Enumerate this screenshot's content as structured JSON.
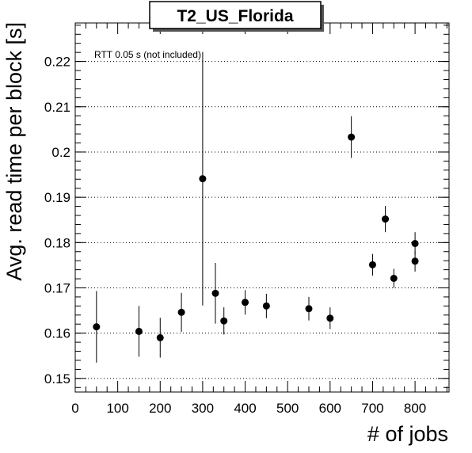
{
  "chart_data": {
    "type": "scatter",
    "title": "T2_US_Florida",
    "xlabel": "# of jobs",
    "ylabel": "Avg. read time per block [s]",
    "annotation": "RTT 0.05 s (not included)",
    "xlim": [
      0,
      880
    ],
    "ylim": [
      0.147,
      0.2285
    ],
    "x_ticks": [
      0,
      100,
      200,
      300,
      400,
      500,
      600,
      700,
      800
    ],
    "y_ticks": [
      0.15,
      0.16,
      0.17,
      0.18,
      0.19,
      0.2,
      0.21,
      0.22
    ],
    "x_tick_labels": [
      "0",
      "100",
      "200",
      "300",
      "400",
      "500",
      "600",
      "700",
      "800"
    ],
    "y_tick_labels": [
      "0.15",
      "0.16",
      "0.17",
      "0.18",
      "0.19",
      "0.2",
      "0.21",
      "0.22"
    ],
    "grid": "horizontal dotted",
    "points": [
      {
        "x": 50,
        "y": 0.1614,
        "err": 0.0079
      },
      {
        "x": 150,
        "y": 0.1604,
        "err": 0.0056
      },
      {
        "x": 200,
        "y": 0.159,
        "err": 0.0044
      },
      {
        "x": 250,
        "y": 0.1646,
        "err": 0.0043
      },
      {
        "x": 300,
        "y": 0.1941,
        "err": 0.028
      },
      {
        "x": 330,
        "y": 0.1688,
        "err": 0.0067
      },
      {
        "x": 350,
        "y": 0.1627,
        "err": 0.003
      },
      {
        "x": 400,
        "y": 0.1668,
        "err": 0.0027
      },
      {
        "x": 450,
        "y": 0.166,
        "err": 0.0027
      },
      {
        "x": 550,
        "y": 0.1654,
        "err": 0.0026
      },
      {
        "x": 600,
        "y": 0.1633,
        "err": 0.0024
      },
      {
        "x": 650,
        "y": 0.2033,
        "err": 0.0046
      },
      {
        "x": 700,
        "y": 0.1751,
        "err": 0.0024
      },
      {
        "x": 730,
        "y": 0.1852,
        "err": 0.0029
      },
      {
        "x": 750,
        "y": 0.1721,
        "err": 0.0021
      },
      {
        "x": 800,
        "y": 0.1798,
        "err": 0.0025
      },
      {
        "x": 800,
        "y": 0.1759,
        "err": 0.0023
      }
    ],
    "marker_color": "#000000"
  }
}
